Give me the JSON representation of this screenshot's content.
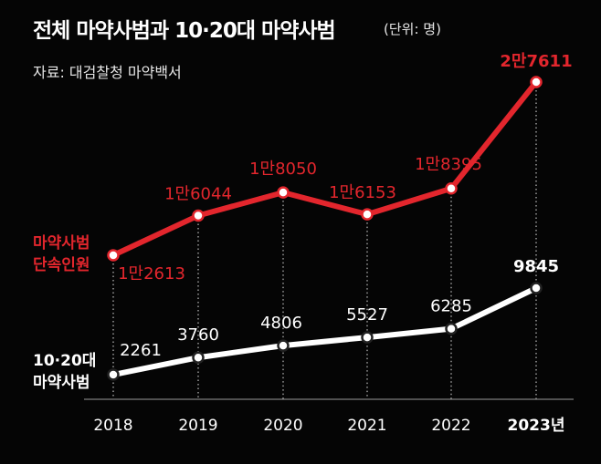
{
  "header": {
    "title": "전체 마약사범과 10·20대 마약사범",
    "unit": "(단위: 명)",
    "source": "자료: 대검찰청 마약백서"
  },
  "colors": {
    "background": "#050505",
    "total_series": "#e3262d",
    "youth_series": "#ffffff",
    "gridline": "#bdbdbd"
  },
  "chart_data": {
    "type": "line",
    "title": "전체 마약사범과 10·20대 마약사범",
    "unit": "명",
    "categories": [
      "2018",
      "2019",
      "2020",
      "2021",
      "2022",
      "2023년"
    ],
    "series": [
      {
        "name": "마약사범 단속인원",
        "name_lines": [
          "마약사범",
          "단속인원"
        ],
        "values": [
          12613,
          16044,
          18050,
          16153,
          18395,
          27611
        ],
        "labels": [
          "1만2613",
          "1만6044",
          "1만8050",
          "1만6153",
          "1만8395",
          "2만7611"
        ],
        "color": "#e3262d"
      },
      {
        "name": "10·20대 마약사범",
        "name_lines": [
          "10·20대",
          "마약사범"
        ],
        "values": [
          2261,
          3760,
          4806,
          5527,
          6285,
          9845
        ],
        "labels": [
          "2261",
          "3760",
          "4806",
          "5527",
          "6285",
          "9845"
        ],
        "color": "#ffffff"
      }
    ]
  }
}
